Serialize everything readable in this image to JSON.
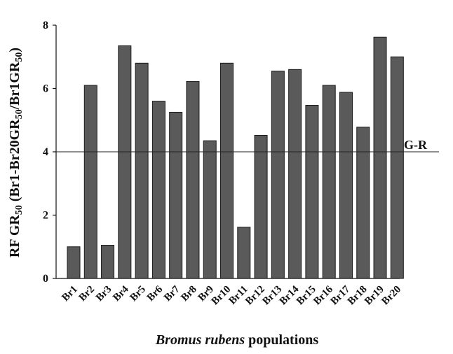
{
  "chart_data": {
    "type": "bar",
    "categories": [
      "Br1",
      "Br2",
      "Br3",
      "Br4",
      "Br5",
      "Br6",
      "Br7",
      "Br8",
      "Br9",
      "Br10",
      "Br11",
      "Br12",
      "Br13",
      "Br14",
      "Br15",
      "Br16",
      "Br17",
      "Br18",
      "Br19",
      "Br20"
    ],
    "values": [
      1.0,
      6.1,
      1.05,
      7.35,
      6.8,
      5.6,
      5.25,
      6.22,
      4.35,
      6.8,
      1.62,
      4.52,
      6.55,
      6.6,
      5.47,
      6.1,
      5.88,
      4.78,
      7.62,
      7.0
    ],
    "ylabel_parts": {
      "lead": "RF GR",
      "sub1": "50",
      "mid": " (Br1-Br20GR",
      "sub2": "50",
      "mid2": "/Br1GR",
      "sub3": "50",
      "tail": ")"
    },
    "xlabel_italic": "Bromus rubens",
    "xlabel_rest": " populations",
    "ylim": [
      0,
      8
    ],
    "yticks": [
      "0",
      "2",
      "4",
      "6",
      "8"
    ],
    "ytick_values": [
      0,
      2,
      4,
      6,
      8
    ],
    "reference_line": {
      "value": 4,
      "label": "G-R"
    },
    "grid": false,
    "bar_color": "#5a5a5a",
    "bar_edge_color": "#1a1a1a"
  }
}
